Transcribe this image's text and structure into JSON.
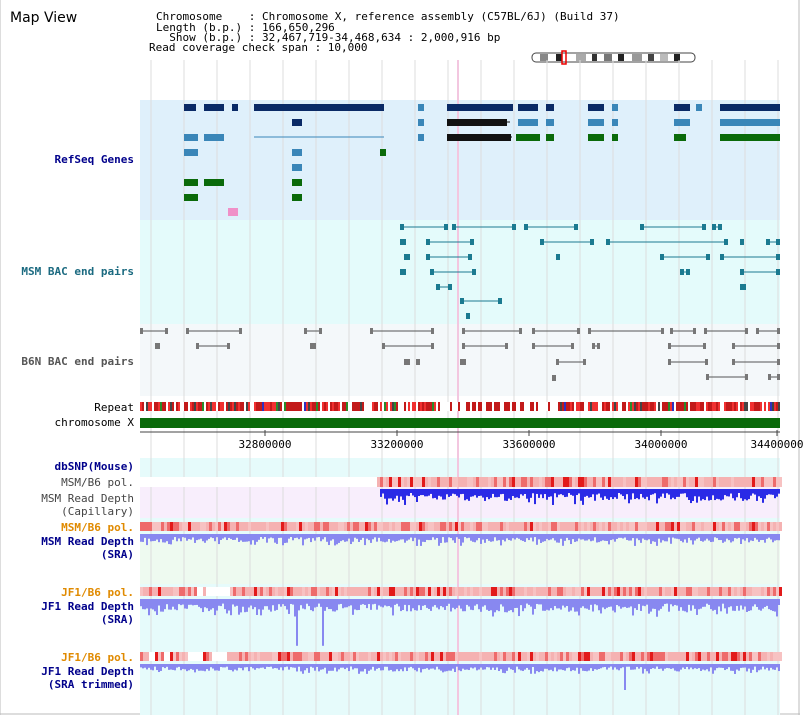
{
  "header": {
    "view_title": "Map View",
    "chromosome_line": "Chromosome    : Chromosome X, reference assembly (C57BL/6J) (Build 37)",
    "length_line": "Length (b.p.) : 166,650,296",
    "show_line": "  Show (b.p.) : 32,467,719-34,468,634 : 2,000,916 bp",
    "coverage_line": "Read coverage check span : 10,000"
  },
  "tracks": {
    "refseq": "RefSeq Genes",
    "msm_bac": "MSM BAC end pairs",
    "b6n_bac": "B6N BAC end pairs",
    "repeat": "Repeat",
    "chromosome": "chromosome X",
    "dbsnp": "dbSNP(Mouse)",
    "msm_b6_pol_cap": "MSM/B6 pol.",
    "msm_depth_cap_1": "MSM Read Depth",
    "msm_depth_cap_2": "(Capillary)",
    "msm_b6_pol_sra": "MSM/B6 pol.",
    "msm_depth_sra_1": "MSM Read Depth",
    "msm_depth_sra_2": "(SRA)",
    "jf1_b6_pol_sra": "JF1/B6 pol.",
    "jf1_depth_sra_1": "JF1 Read Depth",
    "jf1_depth_sra_2": "(SRA)",
    "jf1_b6_pol_trim": "JF1/B6 pol.",
    "jf1_depth_trim_1": "JF1 Read Depth",
    "jf1_depth_trim_2": "(SRA trimmed)"
  },
  "axis": {
    "ticks": [
      "32800000",
      "33200000",
      "33600000",
      "34000000",
      "34400000"
    ]
  },
  "colors": {
    "refseq_bg": "#dff0fb",
    "bac_bg": "#e4fbfb",
    "b6n_bg": "#f4f8fa",
    "gene_dark": "#0a2a66",
    "gene_mid": "#3a86b8",
    "gene_green": "#0a6a0a",
    "bac_line": "#1b7a90",
    "b6n_line": "#555555",
    "chrom_bar": "#0a6a0a",
    "depth_blue": "#2a2ae6",
    "depth_light": "#8888f0",
    "pol_red": "#e21a1a",
    "pol_pink": "#f5b2b2",
    "dbsnp_label": "#00008b",
    "pol_label": "#e08a00",
    "depth_label": "#00008b"
  }
}
